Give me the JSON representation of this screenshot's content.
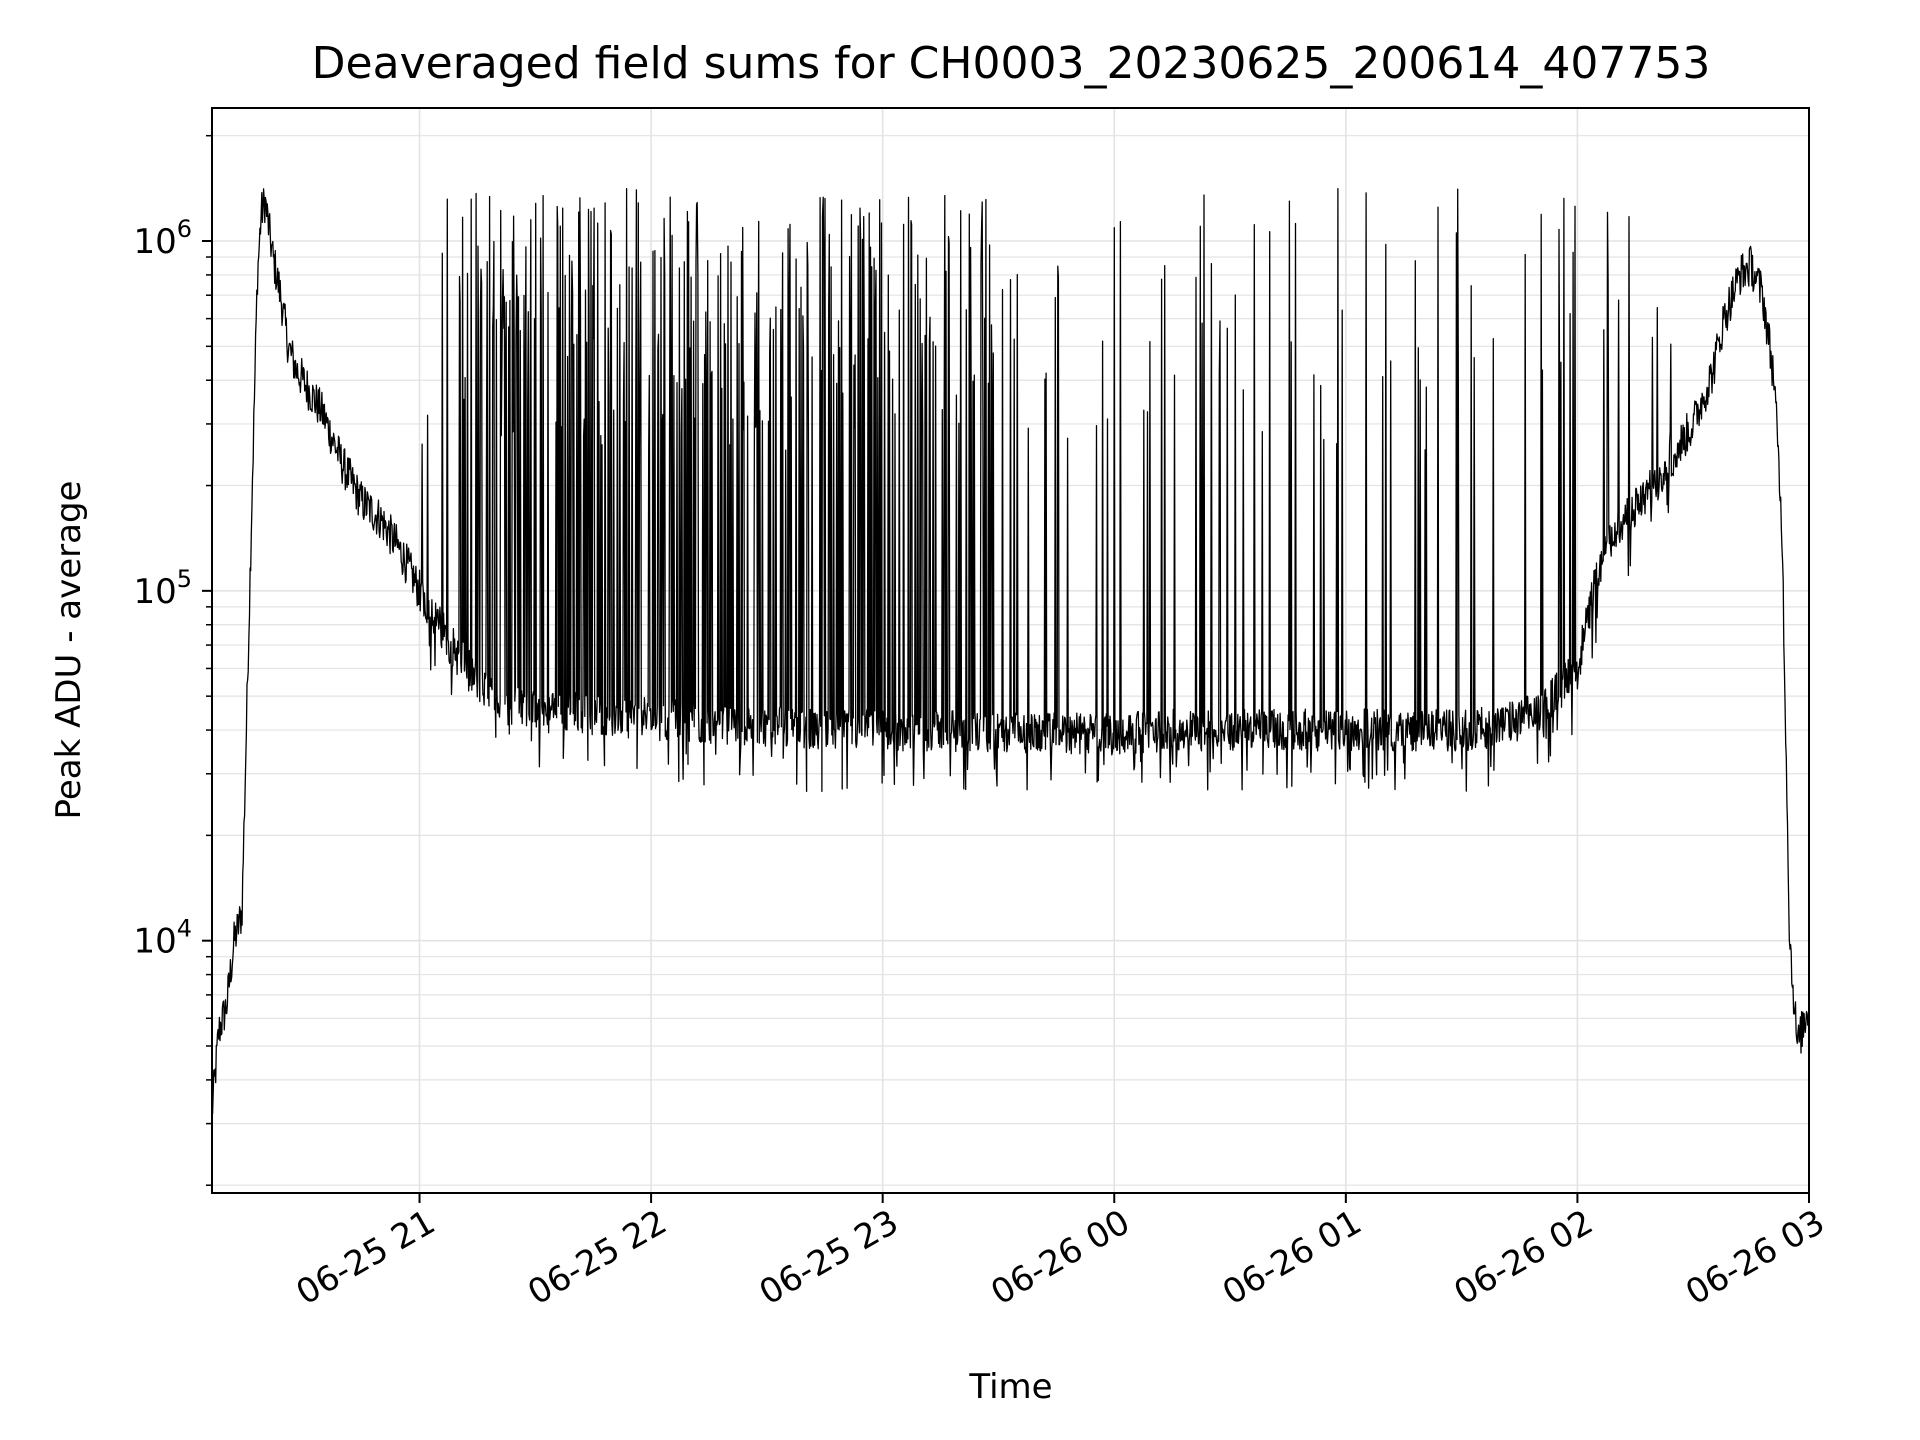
{
  "chart_data": {
    "type": "line",
    "title": "Deaveraged field sums for CH0003_20230625_200614_407753",
    "xlabel": "Time",
    "ylabel": "Peak ADU - average",
    "yscale": "log",
    "xlim": [
      "2023-06-25 20:06:14",
      "2023-06-26 03:00:00"
    ],
    "ylim": [
      1900,
      2400000
    ],
    "grid": true,
    "line_color": "#000000",
    "grid_color": "#e3e3e3",
    "x_ticks": [
      {
        "value": "2023-06-25 21:00",
        "label": "06-25 21"
      },
      {
        "value": "2023-06-25 22:00",
        "label": "06-25 22"
      },
      {
        "value": "2023-06-25 23:00",
        "label": "06-25 23"
      },
      {
        "value": "2023-06-26 00:00",
        "label": "06-26 00"
      },
      {
        "value": "2023-06-26 01:00",
        "label": "06-26 01"
      },
      {
        "value": "2023-06-26 02:00",
        "label": "06-26 02"
      },
      {
        "value": "2023-06-26 03:00",
        "label": "06-26 03"
      }
    ],
    "y_ticks": [
      {
        "value": 10000,
        "base": "10",
        "exp": "4"
      },
      {
        "value": 100000,
        "base": "10",
        "exp": "5"
      },
      {
        "value": 1000000,
        "base": "10",
        "exp": "6"
      }
    ],
    "series": [
      {
        "x": [
          "2023-06-25 20:06",
          "2023-06-25 20:08",
          "2023-06-25 20:10",
          "2023-06-25 20:12",
          "2023-06-25 20:14",
          "2023-06-25 20:16",
          "2023-06-25 20:18",
          "2023-06-25 20:19",
          "2023-06-25 20:20",
          "2023-06-25 20:22",
          "2023-06-25 20:24",
          "2023-06-25 20:26",
          "2023-06-25 20:28",
          "2023-06-25 20:31",
          "2023-06-25 20:35",
          "2023-06-25 20:40",
          "2023-06-25 20:45",
          "2023-06-25 20:50",
          "2023-06-25 20:55",
          "2023-06-25 21:00",
          "2023-06-25 21:05",
          "2023-06-25 21:10",
          "2023-06-25 21:15",
          "2023-06-25 21:20",
          "2023-06-25 21:30",
          "2023-06-25 21:40",
          "2023-06-25 21:50",
          "2023-06-25 22:00",
          "2023-06-25 22:15",
          "2023-06-25 22:30",
          "2023-06-25 22:45",
          "2023-06-25 23:00",
          "2023-06-25 23:15",
          "2023-06-25 23:30",
          "2023-06-25 23:45",
          "2023-06-26 00:00",
          "2023-06-26 00:15",
          "2023-06-26 00:30",
          "2023-06-26 00:45",
          "2023-06-26 01:00",
          "2023-06-26 01:15",
          "2023-06-26 01:30",
          "2023-06-26 01:40",
          "2023-06-26 01:50",
          "2023-06-26 02:00",
          "2023-06-26 02:05",
          "2023-06-26 02:10",
          "2023-06-26 02:20",
          "2023-06-26 02:30",
          "2023-06-26 02:35",
          "2023-06-26 02:38",
          "2023-06-26 02:42",
          "2023-06-26 02:45",
          "2023-06-26 02:48",
          "2023-06-26 02:51",
          "2023-06-26 02:53",
          "2023-06-26 02:55",
          "2023-06-26 02:57",
          "2023-06-26 03:00"
        ],
        "y": [
          3000,
          5500,
          6500,
          10000,
          12000,
          100000,
          800000,
          1200000,
          1300000,
          900000,
          700000,
          500000,
          430000,
          380000,
          320000,
          230000,
          180000,
          160000,
          130000,
          100000,
          80000,
          65000,
          55000,
          48000,
          45000,
          45000,
          44000,
          43000,
          42000,
          41000,
          40000,
          40000,
          40000,
          39000,
          39000,
          39000,
          40000,
          40000,
          40000,
          40000,
          40000,
          40000,
          41000,
          45000,
          60000,
          110000,
          150000,
          200000,
          300000,
          420000,
          600000,
          800000,
          850000,
          700000,
          400000,
          150000,
          10000,
          5000,
          6500
        ]
      }
    ]
  }
}
